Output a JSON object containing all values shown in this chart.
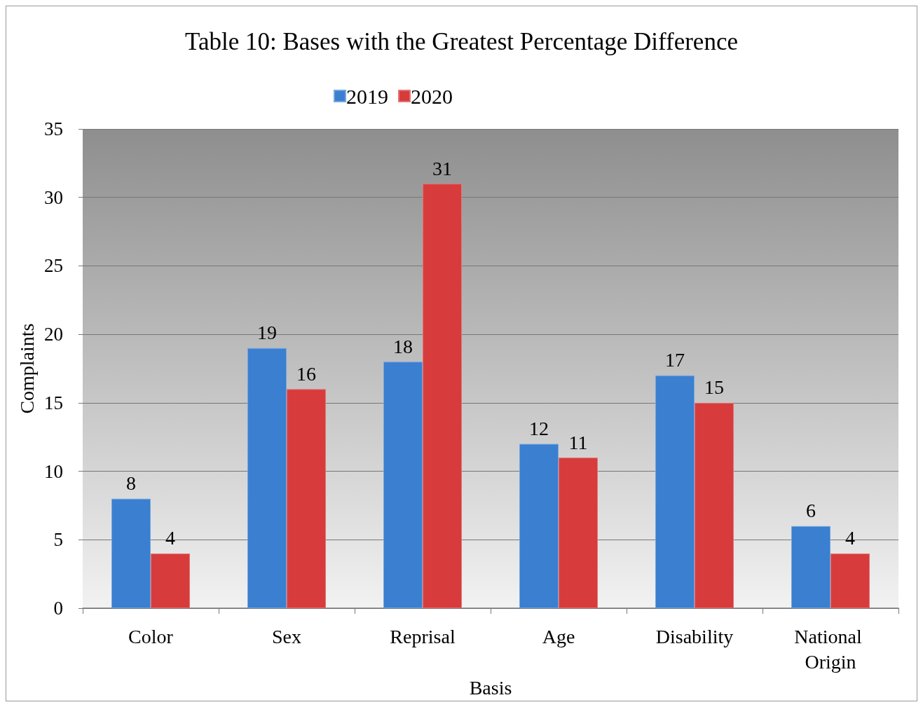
{
  "chart_data": {
    "type": "bar",
    "title": "Table 10: Bases with the Greatest Percentage Difference",
    "xlabel": "Basis",
    "ylabel": "Complaints",
    "categories": [
      "Color",
      "Sex",
      "Reprisal",
      "Age",
      "Disability",
      "National Origin"
    ],
    "series": [
      {
        "name": "2019",
        "color": "#3a7fd0",
        "values": [
          8,
          19,
          18,
          12,
          17,
          6
        ]
      },
      {
        "name": "2020",
        "color": "#d83b3b",
        "values": [
          4,
          16,
          31,
          11,
          15,
          4
        ]
      }
    ],
    "ylim": [
      0,
      35
    ],
    "yticks": [
      0,
      5,
      10,
      15,
      20,
      25,
      30,
      35
    ],
    "grid": "y",
    "legend": "top",
    "data_labels": true
  }
}
